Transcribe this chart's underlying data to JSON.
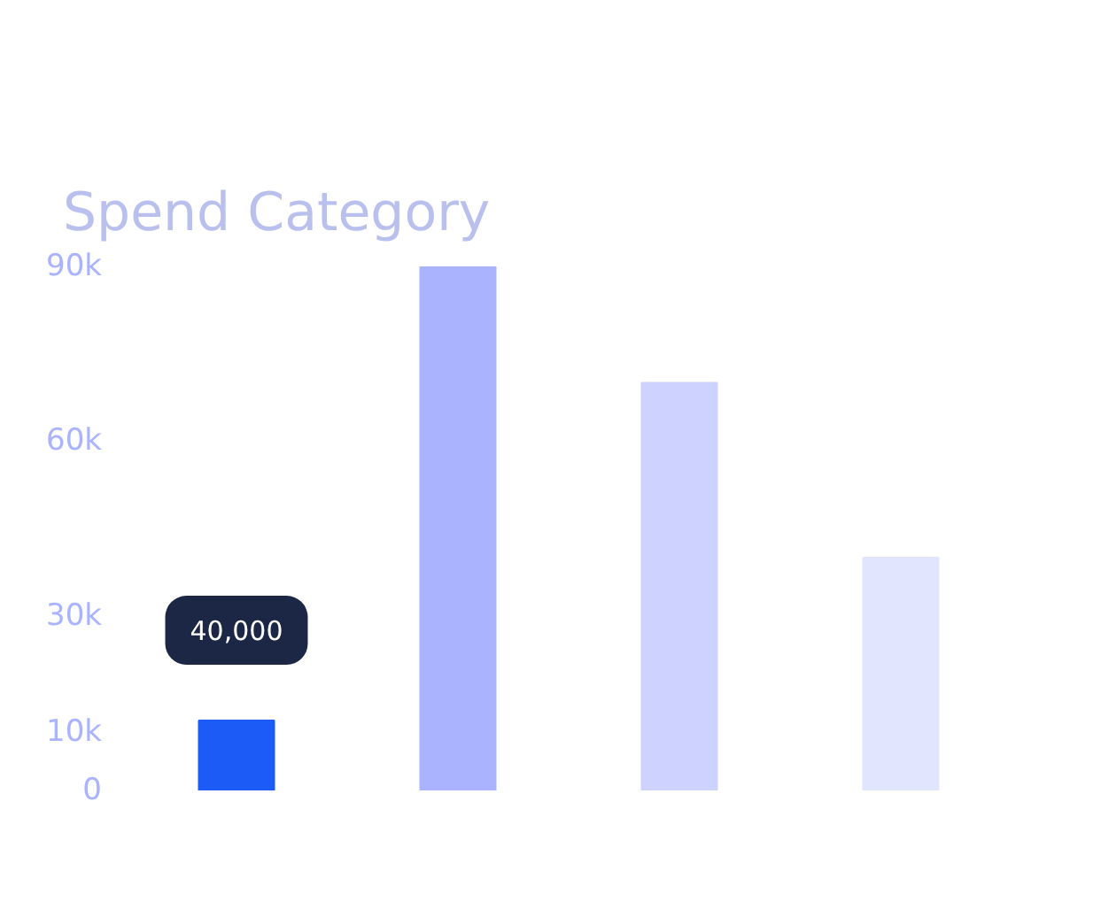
{
  "chart_data": {
    "type": "bar",
    "title": "Spend Category",
    "categories": [
      null,
      null,
      null,
      null
    ],
    "values": [
      12000,
      90000,
      70000,
      40000
    ],
    "colors": [
      "#1c5bf5",
      "#a9b3fe",
      "#cdd3fe",
      "#e2e5fe"
    ],
    "ylim": [
      0,
      90000
    ],
    "yticks": [
      {
        "value": 0,
        "label": "0"
      },
      {
        "value": 10000,
        "label": "10k"
      },
      {
        "value": 30000,
        "label": "30k"
      },
      {
        "value": 60000,
        "label": "60k"
      },
      {
        "value": 90000,
        "label": "90k"
      }
    ],
    "annotations": [
      "40,000"
    ],
    "grid": false
  }
}
